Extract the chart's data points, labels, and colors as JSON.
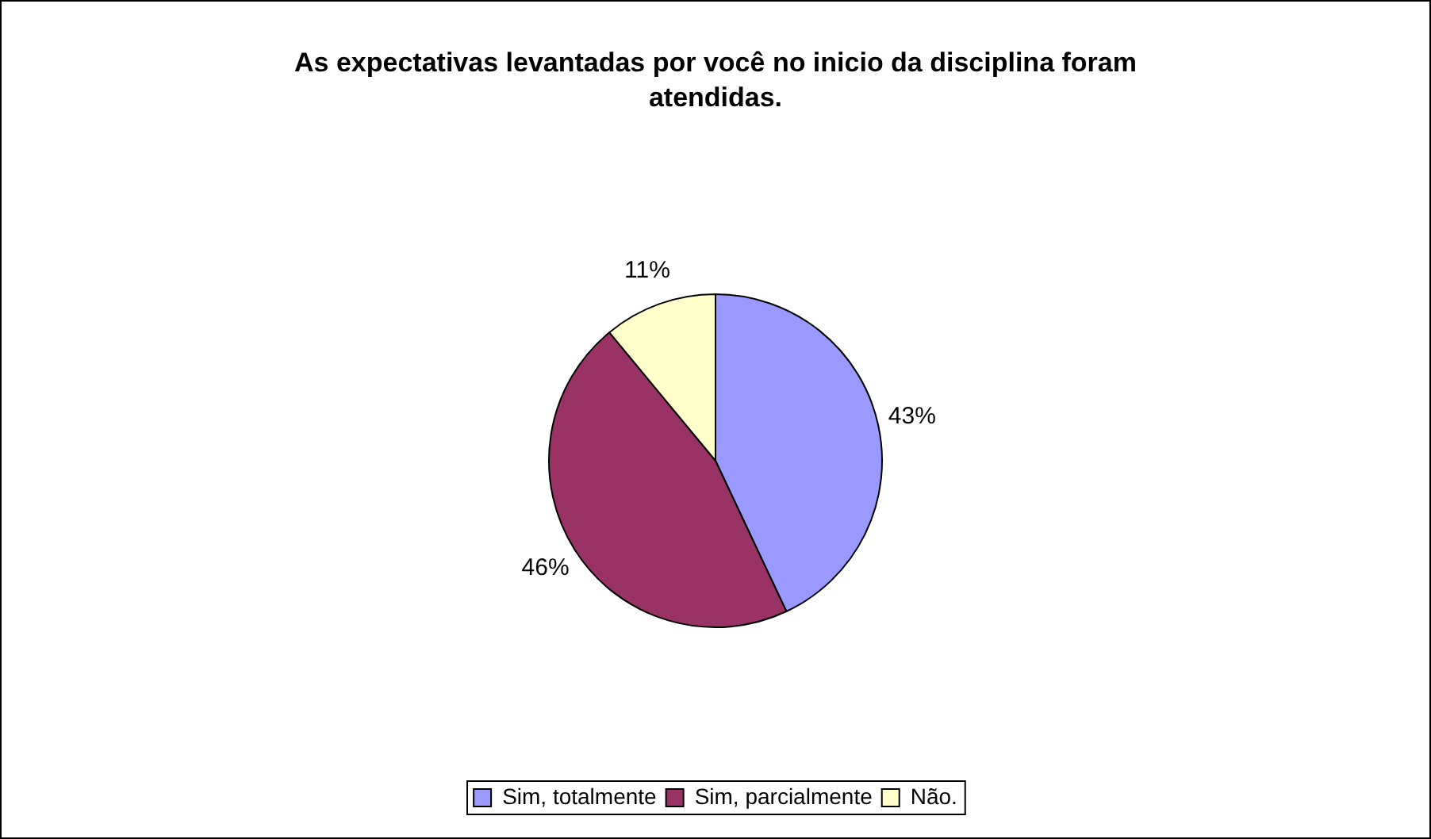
{
  "chart_data": {
    "type": "pie",
    "title": "As expectativas levantadas por você no inicio da disciplina foram atendidas.",
    "categories": [
      "Sim, totalmente",
      "Sim, parcialmente",
      "Não."
    ],
    "values": [
      43,
      46,
      11
    ],
    "colors": [
      "#9999ff",
      "#993366",
      "#ffffcc"
    ],
    "value_labels": [
      "43%",
      "46%",
      "11%"
    ],
    "legend": "bottom"
  }
}
